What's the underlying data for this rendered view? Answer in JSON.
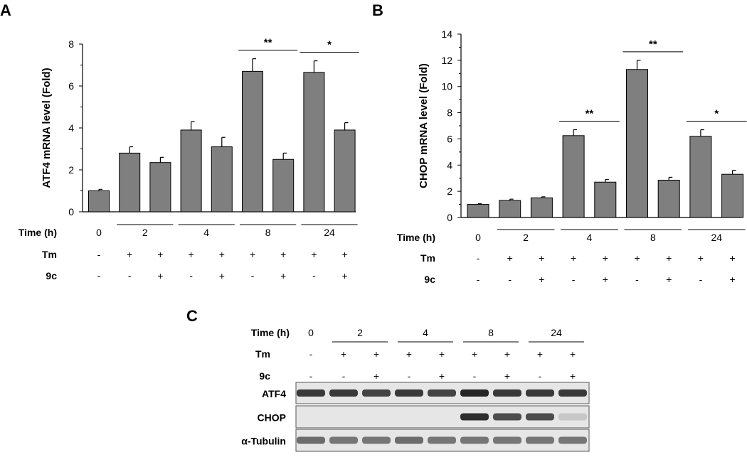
{
  "panels": {
    "A": {
      "letter": "A"
    },
    "B": {
      "letter": "B"
    },
    "C": {
      "letter": "C"
    }
  },
  "chart_data": [
    {
      "type": "bar",
      "panel": "A",
      "ylabel": "ATF4 mRNA level (Fold)",
      "ylim": [
        0,
        8
      ],
      "yticks": [
        0,
        2,
        4,
        6,
        8
      ],
      "values": [
        1.0,
        2.8,
        2.35,
        3.9,
        3.1,
        6.7,
        2.5,
        6.65,
        3.9
      ],
      "errors": [
        0.07,
        0.3,
        0.25,
        0.4,
        0.45,
        0.6,
        0.3,
        0.55,
        0.35
      ],
      "time_groups": [
        "0",
        "2",
        "4",
        "8",
        "24"
      ],
      "rows": [
        {
          "label": "Time (h)"
        },
        {
          "label": "Tm",
          "values": [
            "-",
            "+",
            "+",
            "+",
            "+",
            "+",
            "+",
            "+",
            "+"
          ]
        },
        {
          "label": "9c",
          "values": [
            "-",
            "-",
            "+",
            "-",
            "+",
            "-",
            "+",
            "-",
            "+"
          ]
        }
      ],
      "significance": [
        {
          "bars": [
            5,
            6
          ],
          "label": "**"
        },
        {
          "bars": [
            7,
            8
          ],
          "label": "*"
        }
      ]
    },
    {
      "type": "bar",
      "panel": "B",
      "ylabel": "CHOP mRNA level (Fold)",
      "ylim": [
        0,
        14
      ],
      "yticks": [
        0,
        2,
        4,
        6,
        8,
        10,
        12,
        14
      ],
      "values": [
        1.0,
        1.3,
        1.5,
        6.25,
        2.7,
        11.3,
        2.85,
        6.2,
        3.3
      ],
      "errors": [
        0.05,
        0.1,
        0.08,
        0.45,
        0.2,
        0.7,
        0.22,
        0.5,
        0.3
      ],
      "time_groups": [
        "0",
        "2",
        "4",
        "8",
        "24"
      ],
      "rows": [
        {
          "label": "Time (h)"
        },
        {
          "label": "Tm",
          "values": [
            "-",
            "+",
            "+",
            "+",
            "+",
            "+",
            "+",
            "+",
            "+"
          ]
        },
        {
          "label": "9c",
          "values": [
            "-",
            "-",
            "+",
            "-",
            "+",
            "-",
            "+",
            "-",
            "+"
          ]
        }
      ],
      "significance": [
        {
          "bars": [
            3,
            4
          ],
          "label": "**"
        },
        {
          "bars": [
            5,
            6
          ],
          "label": "**"
        },
        {
          "bars": [
            7,
            8
          ],
          "label": "*"
        }
      ]
    }
  ],
  "blot": {
    "time_groups": [
      "0",
      "2",
      "4",
      "8",
      "24"
    ],
    "rows": [
      {
        "label": "Time (h)"
      },
      {
        "label": "Tm",
        "values": [
          "-",
          "+",
          "+",
          "+",
          "+",
          "+",
          "+",
          "+",
          "+"
        ]
      },
      {
        "label": "9c",
        "values": [
          "-",
          "-",
          "+",
          "-",
          "+",
          "-",
          "+",
          "-",
          "+"
        ]
      }
    ],
    "bands": [
      {
        "label": "ATF4",
        "intensities": [
          0.85,
          0.85,
          0.8,
          0.85,
          0.8,
          0.95,
          0.85,
          0.85,
          0.85
        ]
      },
      {
        "label": "CHOP",
        "intensities": [
          0,
          0,
          0,
          0,
          0,
          0.9,
          0.75,
          0.75,
          0.15
        ]
      },
      {
        "label": "α-Tubulin",
        "intensities": [
          0.6,
          0.55,
          0.55,
          0.6,
          0.55,
          0.55,
          0.55,
          0.55,
          0.55
        ]
      }
    ]
  },
  "colors": {
    "bar": "#7f7f7f",
    "bar_stroke": "#000000",
    "band": "#1a1a1a",
    "blot_bg": "#e6e6e6"
  }
}
